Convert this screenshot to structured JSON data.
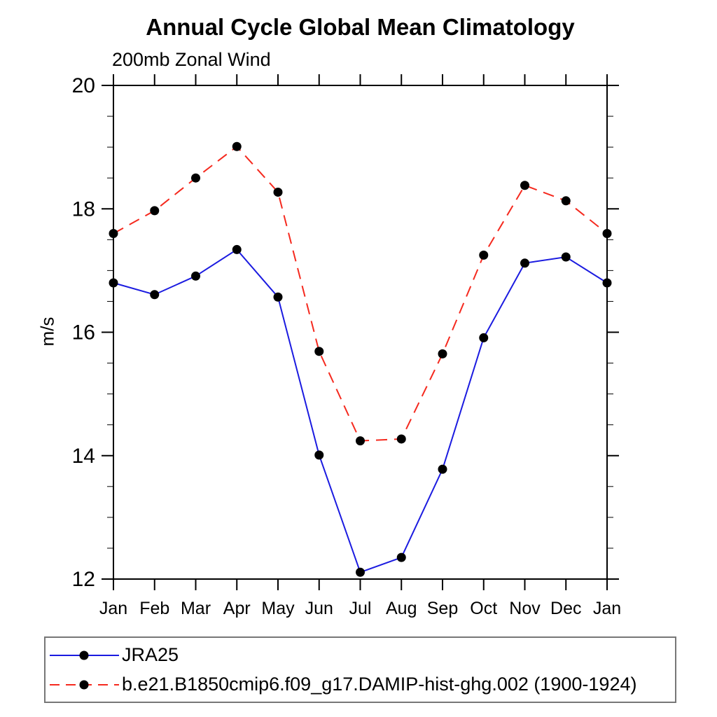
{
  "chart_data": {
    "type": "line",
    "title": "Annual Cycle Global Mean Climatology",
    "subtitle": "200mb Zonal Wind",
    "ylabel": "m/s",
    "xlabel": "",
    "categories": [
      "Jan",
      "Feb",
      "Mar",
      "Apr",
      "May",
      "Jun",
      "Jul",
      "Aug",
      "Sep",
      "Oct",
      "Nov",
      "Dec",
      "Jan"
    ],
    "series": [
      {
        "name": "JRA25",
        "color": "#1b1be0",
        "line_style": "solid",
        "marker": "circle",
        "marker_color": "#000000",
        "values": [
          16.8,
          16.61,
          16.91,
          17.34,
          16.57,
          14.01,
          12.11,
          12.35,
          13.78,
          15.91,
          17.12,
          17.22,
          16.8
        ]
      },
      {
        "name": "b.e21.B1850cmip6.f09_g17.DAMIP-hist-ghg.002 (1900-1924)",
        "color": "#f5291e",
        "line_style": "dashed",
        "marker": "circle",
        "marker_color": "#000000",
        "values": [
          17.6,
          17.97,
          18.5,
          19.01,
          18.27,
          15.69,
          14.24,
          14.27,
          15.65,
          17.25,
          18.38,
          18.13,
          17.6
        ]
      }
    ],
    "ylim": [
      12,
      20
    ],
    "ytick_major": [
      12,
      14,
      16,
      18,
      20
    ],
    "ytick_minor_step": 0.5,
    "grid": false,
    "legend_position": "bottom",
    "axis_color": "#000000"
  }
}
